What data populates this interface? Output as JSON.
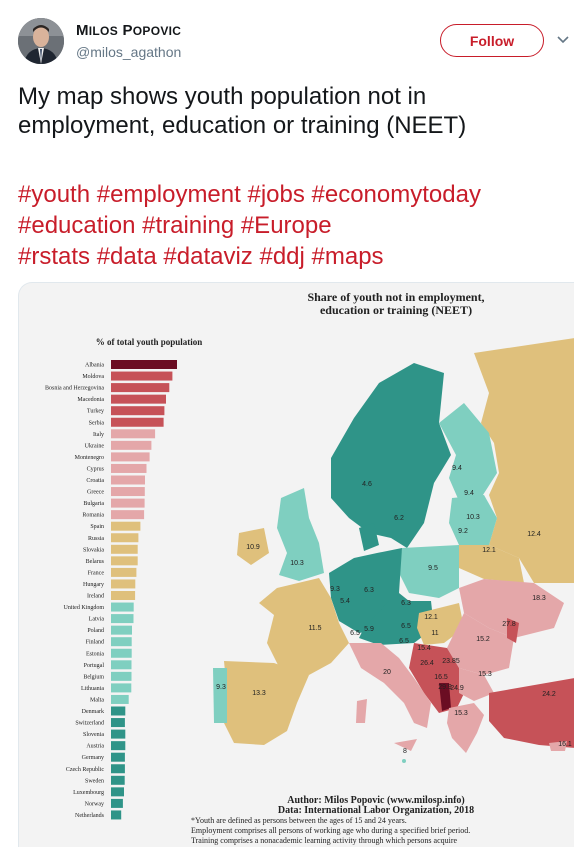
{
  "user": {
    "name_first": "M",
    "name_first_sc": "ilos",
    "name_last": "P",
    "name_last_sc": "opovic",
    "handle": "@milos_agathon"
  },
  "follow_label": "Follow",
  "tweet_text": "My map shows youth population not in employment, education or training (NEET)",
  "hashtag_lines": [
    "#youth #employment #jobs #economytoday",
    "#education #training #Europe",
    "#rstats #data #dataviz #ddj #maps"
  ],
  "colors": {
    "accent": "#c81d2a",
    "dark_red": "#6b0d23",
    "red": "#c65258",
    "pink": "#e4a7a9",
    "sand": "#dfc07c",
    "light_teal": "#7fcfc0",
    "teal": "#2f9488"
  },
  "figure": {
    "map_title_line1": "Share of youth not in employment,",
    "map_title_line2": "education or training (NEET)",
    "bar_title": "% of total youth population",
    "author_line": "Author: Milos Popovic (www.milosp.info)",
    "data_line": "Data: International Labor Organization, 2018",
    "notes": [
      "*Youth are defined as persons between the ages of 15 and 24 years.",
      "Employment comprises all persons of working age who during a specified brief period.",
      "Training comprises a nonacademic learning activity through which persons acquire"
    ]
  },
  "chart_data": {
    "type": "bar",
    "orientation": "horizontal",
    "title": "% of total youth population",
    "categories": [
      "Albania",
      "Moldova",
      "Bosnia and Herzegovina",
      "Macedonia",
      "Turkey",
      "Serbia",
      "Italy",
      "Ukraine",
      "Montenegro",
      "Cyprus",
      "Croatia",
      "Greece",
      "Bulgaria",
      "Romania",
      "Spain",
      "Russia",
      "Slovakia",
      "Belarus",
      "France",
      "Hungary",
      "Ireland",
      "United Kingdom",
      "Latvia",
      "Poland",
      "Finland",
      "Estonia",
      "Portugal",
      "Belgium",
      "Lithuania",
      "Malta",
      "Denmark",
      "Switzerland",
      "Slovenia",
      "Austria",
      "Germany",
      "Czech Republic",
      "Sweden",
      "Luxembourg",
      "Norway",
      "Netherlands"
    ],
    "values": [
      29.9,
      27.8,
      26.4,
      24.9,
      24.2,
      23.85,
      20,
      18.3,
      17.5,
      16.1,
      15.4,
      15.3,
      15.2,
      15.0,
      13.3,
      12.4,
      12.1,
      12.1,
      11.5,
      11,
      10.9,
      10.3,
      10.2,
      9.5,
      9.4,
      9.4,
      9.3,
      9.3,
      9.2,
      8,
      6.5,
      6.3,
      6.5,
      6.5,
      6.3,
      6.3,
      6.2,
      5.9,
      5.4,
      4.6
    ],
    "color_classes": [
      "dark_red",
      "red",
      "red",
      "red",
      "red",
      "red",
      "pink",
      "pink",
      "pink",
      "pink",
      "pink",
      "pink",
      "pink",
      "pink",
      "sand",
      "sand",
      "sand",
      "sand",
      "sand",
      "sand",
      "sand",
      "light_teal",
      "light_teal",
      "light_teal",
      "light_teal",
      "light_teal",
      "light_teal",
      "light_teal",
      "light_teal",
      "light_teal",
      "teal",
      "teal",
      "teal",
      "teal",
      "teal",
      "teal",
      "teal",
      "teal",
      "teal",
      "teal"
    ],
    "map_labels": [
      "9.4",
      "4.6",
      "6.2",
      "9.4",
      "10.3",
      "9.2",
      "12.4",
      "10.9",
      "10.3",
      "12.1",
      "9.5",
      "9.3",
      "5.4",
      "6.3",
      "6.3",
      "18.3",
      "5.9",
      "6.5",
      "12.1",
      "27.8",
      "11.5",
      "6.5",
      "11",
      "15.2",
      "6.5",
      "15.4",
      "23.85",
      "20",
      "26.4",
      "15.3",
      "16.5",
      "29.9",
      "24.2",
      "9.3",
      "13.3",
      "24.9",
      "15.3",
      "8",
      "16.1"
    ]
  }
}
